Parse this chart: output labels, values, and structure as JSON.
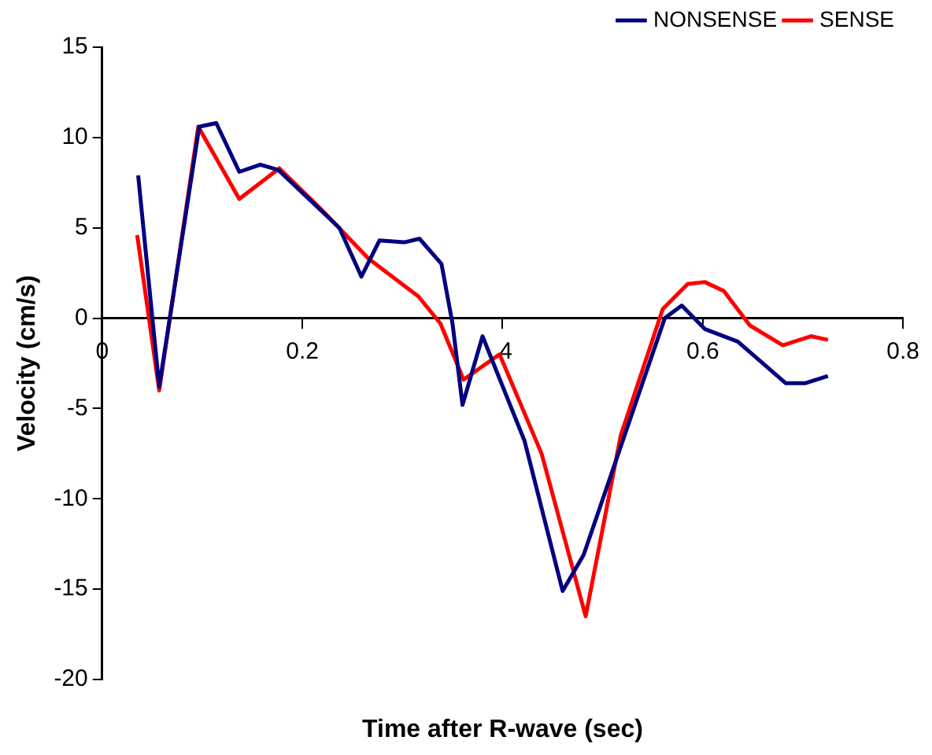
{
  "chart_data": {
    "type": "line",
    "xlabel": "Time after R-wave (sec)",
    "ylabel": "Velocity (cm/s)",
    "xlim": [
      0,
      0.8
    ],
    "xticks": [
      0,
      0.2,
      {
        "value": 0.4,
        "label": ".4"
      },
      0.6,
      0.8
    ],
    "ylim": [
      -20,
      15
    ],
    "yticks": [
      -20,
      -15,
      -10,
      -5,
      0,
      5,
      10,
      15
    ],
    "grid": false,
    "legend": "top right",
    "marker": "none",
    "line_style": "solid",
    "series": [
      {
        "name": "NONSENSE",
        "color": "#000080",
        "x": [
          0.036,
          0.057,
          0.097,
          0.114,
          0.137,
          0.158,
          0.176,
          0.237,
          0.259,
          0.277,
          0.302,
          0.317,
          0.339,
          0.35,
          0.36,
          0.38,
          0.422,
          0.46,
          0.481,
          0.562,
          0.579,
          0.602,
          0.635,
          0.683,
          0.702,
          0.725
        ],
        "values": [
          7.9,
          -3.8,
          10.6,
          10.8,
          8.1,
          8.5,
          8.2,
          5.0,
          2.3,
          4.3,
          4.2,
          4.4,
          3.0,
          -0.3,
          -4.8,
          -1.0,
          -6.8,
          -15.1,
          -13.1,
          0.0,
          0.7,
          -0.6,
          -1.3,
          -3.6,
          -3.6,
          -3.2
        ]
      },
      {
        "name": "SENSE",
        "color": "#ff0000",
        "x": [
          0.035,
          0.057,
          0.096,
          0.137,
          0.177,
          0.221,
          0.266,
          0.316,
          0.338,
          0.361,
          0.397,
          0.439,
          0.483,
          0.518,
          0.56,
          0.585,
          0.602,
          0.621,
          0.647,
          0.68,
          0.708,
          0.725
        ],
        "values": [
          4.6,
          -4.0,
          10.6,
          6.6,
          8.3,
          5.9,
          3.3,
          1.2,
          -0.3,
          -3.4,
          -2.0,
          -7.5,
          -16.5,
          -6.5,
          0.5,
          1.9,
          2.0,
          1.5,
          -0.4,
          -1.5,
          -1.0,
          -1.2
        ]
      }
    ]
  }
}
